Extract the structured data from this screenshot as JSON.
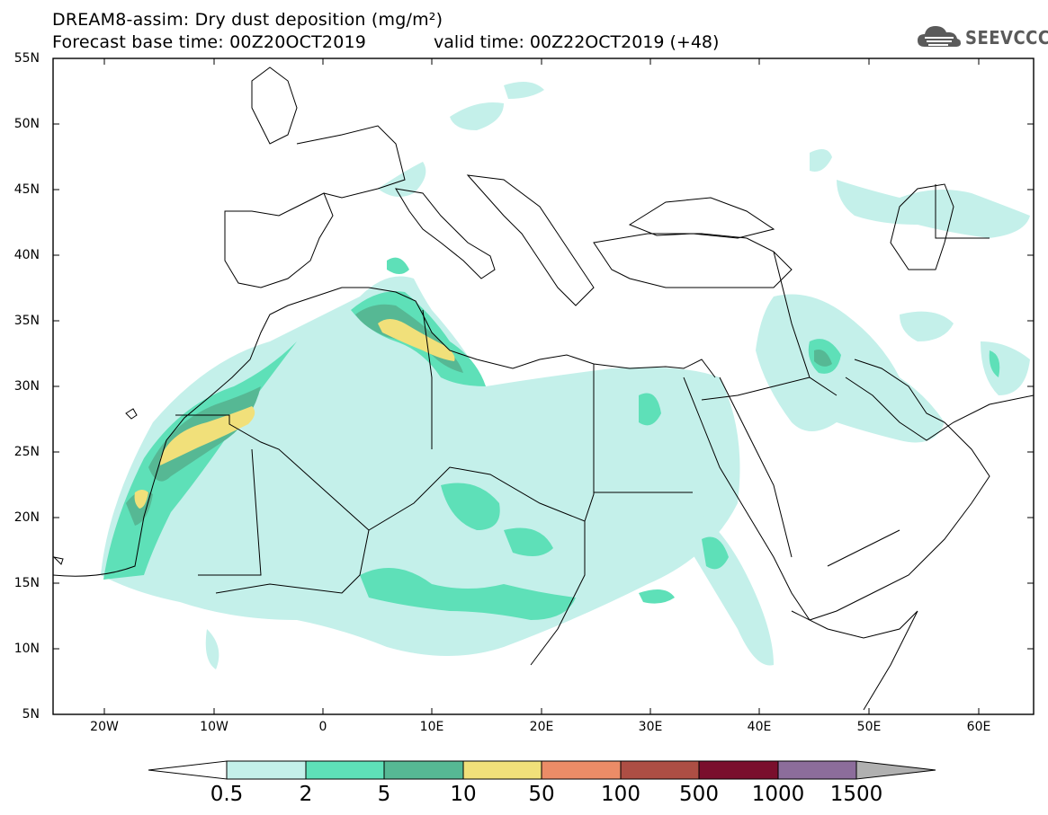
{
  "header": {
    "title": "DREAM8-assim: Dry dust deposition (mg/m²)",
    "base_time": "Forecast base time: 00Z20OCT2019",
    "valid_time": "valid time: 00Z22OCT2019 (+48)"
  },
  "logo": {
    "text": "SEEVCCC",
    "icon": "cloud-logo-icon"
  },
  "axes": {
    "lat_labels": [
      "55N",
      "50N",
      "45N",
      "40N",
      "35N",
      "30N",
      "25N",
      "20N",
      "15N",
      "10N",
      "5N"
    ],
    "lon_labels": [
      "20W",
      "10W",
      "0",
      "10E",
      "20E",
      "30E",
      "40E",
      "50E",
      "60E"
    ]
  },
  "colorbar": {
    "labels": [
      "0.5",
      "2",
      "5",
      "10",
      "50",
      "100",
      "500",
      "1000",
      "1500"
    ],
    "colors": [
      "#c4f0ea",
      "#5ee0b8",
      "#56b894",
      "#f1e07a",
      "#eb8c67",
      "#ad4e44",
      "#7a0f2d",
      "#8c6d9b"
    ],
    "over_color": "#b0b0b0",
    "under_color": "#ffffff"
  }
}
